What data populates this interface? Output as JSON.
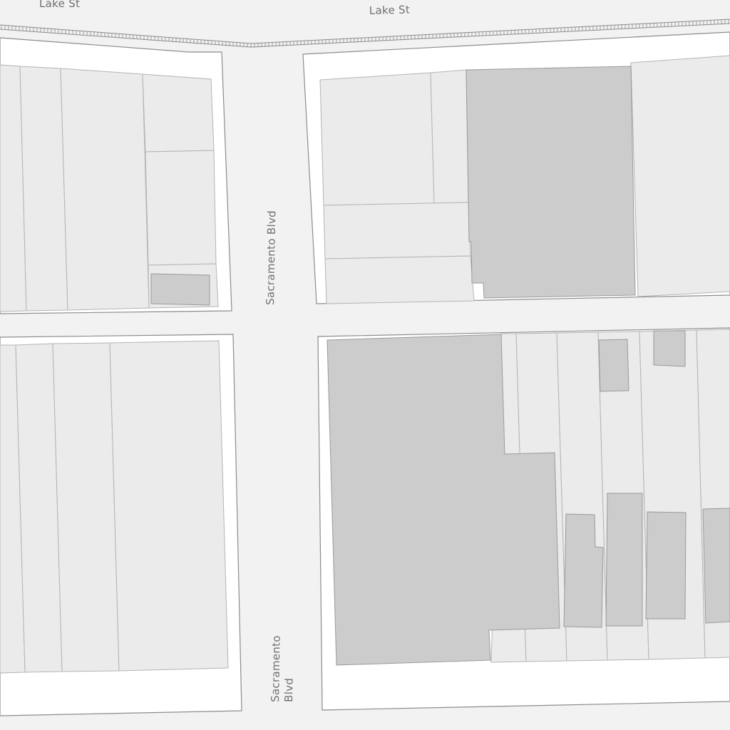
{
  "map": {
    "background_color": "#f2f2f2",
    "block_color": "#ffffff",
    "parcel_color": "#ebebeb",
    "building_color": "#cccccc",
    "label_color": "#707070",
    "streets": {
      "lake_st_left": "Lake St",
      "lake_st_right": "Lake St",
      "sacramento_upper": "Sacramento Blvd",
      "sacramento_lower_line1": "Sacramento",
      "sacramento_lower_line2": "Blvd"
    }
  }
}
